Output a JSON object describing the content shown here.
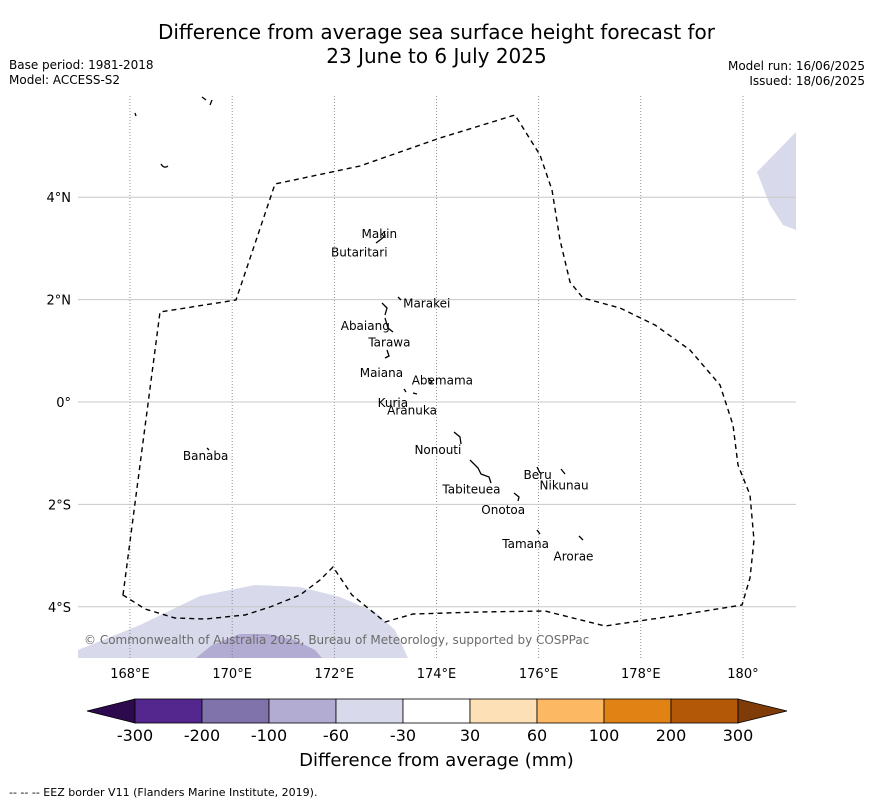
{
  "title": {
    "line1": "Difference from average sea surface height forecast for",
    "line2": "23 June to 6 July 2025"
  },
  "meta_left": {
    "base_period": "Base period: 1981-2018",
    "model": "Model: ACCESS-S2"
  },
  "meta_right": {
    "model_run": "Model run: 16/06/2025",
    "issued": "Issued: 18/06/2025"
  },
  "map": {
    "x_ticks": [
      "168°E",
      "170°E",
      "172°E",
      "174°E",
      "176°E",
      "178°E",
      "180°"
    ],
    "y_ticks": [
      "4°N",
      "2°N",
      "0°",
      "2°S",
      "4°S"
    ],
    "copyright": "© Commonwealth of Australia 2025, Bureau of Meteorology, supported by COSPPac",
    "islands": [
      {
        "name": "Makin",
        "lon": 172.9,
        "lat": 3.2
      },
      {
        "name": "Butaritari",
        "lon": 172.9,
        "lat": 3.0
      },
      {
        "name": "Marakei",
        "lon": 173.3,
        "lat": 2.0
      },
      {
        "name": "Abaiang",
        "lon": 172.9,
        "lat": 1.8
      },
      {
        "name": "Tarawa",
        "lon": 173.0,
        "lat": 1.4
      },
      {
        "name": "Maiana",
        "lon": 173.0,
        "lat": 0.9
      },
      {
        "name": "Abemama",
        "lon": 173.9,
        "lat": 0.4
      },
      {
        "name": "Kuria",
        "lon": 173.4,
        "lat": 0.2
      },
      {
        "name": "Aranuka",
        "lon": 173.6,
        "lat": 0.15
      },
      {
        "name": "Banaba",
        "lon": 169.5,
        "lat": -0.9
      },
      {
        "name": "Nonouti",
        "lon": 174.4,
        "lat": -0.7
      },
      {
        "name": "Tabiteuea",
        "lon": 174.9,
        "lat": -1.4
      },
      {
        "name": "Beru",
        "lon": 176.0,
        "lat": -1.35
      },
      {
        "name": "Nikunau",
        "lon": 176.4,
        "lat": -1.4
      },
      {
        "name": "Onotoa",
        "lon": 175.6,
        "lat": -1.8
      },
      {
        "name": "Tamana",
        "lon": 176.0,
        "lat": -2.5
      },
      {
        "name": "Arorae",
        "lon": 176.8,
        "lat": -2.65
      }
    ]
  },
  "colorbar": {
    "title": "Difference from average (mm)",
    "tick_labels": [
      "-300",
      "-200",
      "-100",
      "-60",
      "-30",
      "30",
      "60",
      "100",
      "200",
      "300"
    ],
    "colors": {
      "lt_neg300": "#2d0a4e",
      "neg300_neg200": "#54278f",
      "neg200_neg100": "#8073ac",
      "neg100_neg60": "#b2abd2",
      "neg60_neg30": "#d8daeb",
      "neg30_30": "#ffffff",
      "30_60": "#fee0b6",
      "60_100": "#fdb863",
      "100_200": "#e08214",
      "200_300": "#b35806",
      "gt_300": "#7f3b08"
    }
  },
  "legend": {
    "eez_line": "--  --  -- EEZ border V11 (Flanders Marine Institute, 2019)."
  }
}
